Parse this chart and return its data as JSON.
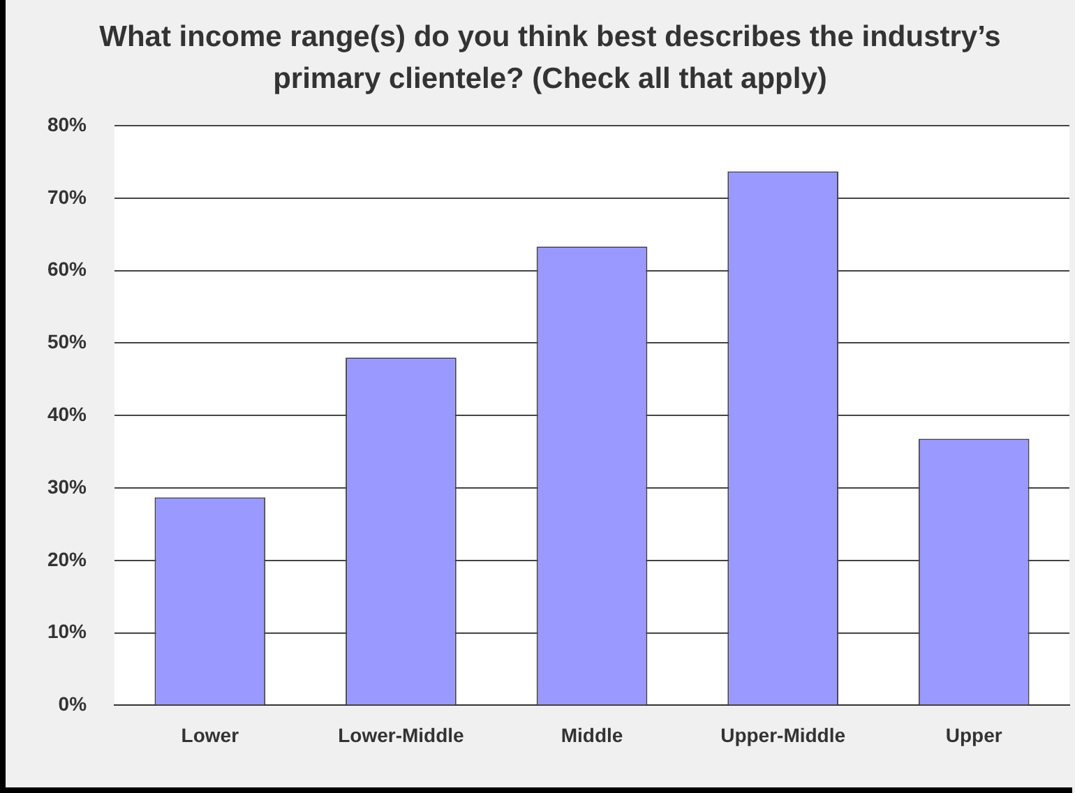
{
  "chart_data": {
    "type": "bar",
    "title": "What income range(s) do you think best describes the industry’s primary clientele? (Check all that apply)",
    "categories": [
      "Lower",
      "Lower-Middle",
      "Middle",
      "Upper-Middle",
      "Upper"
    ],
    "values": [
      28.7,
      48.0,
      63.3,
      73.7,
      36.8
    ],
    "color": "#9999ff",
    "ylim": [
      0,
      80
    ],
    "yticks": [
      {
        "value": 0,
        "label": "0%"
      },
      {
        "value": 10,
        "label": "10%"
      },
      {
        "value": 20,
        "label": "20%"
      },
      {
        "value": 30,
        "label": "30%"
      },
      {
        "value": 40,
        "label": "40%"
      },
      {
        "value": 50,
        "label": "50%"
      },
      {
        "value": 60,
        "label": "60%"
      },
      {
        "value": 70,
        "label": "70%"
      },
      {
        "value": 80,
        "label": "80%"
      }
    ],
    "grid": "y"
  }
}
